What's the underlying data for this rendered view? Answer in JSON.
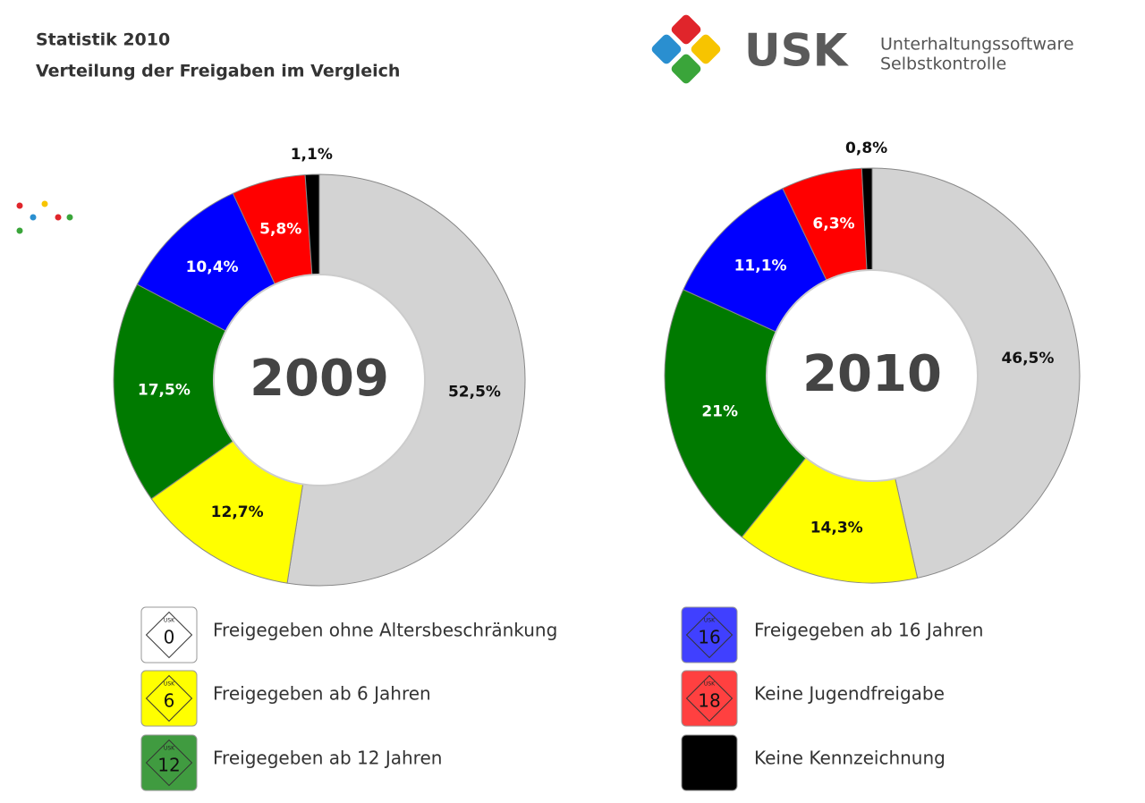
{
  "header": {
    "title": "Statistik 2010",
    "subtitle": "Verteilung der Freigaben im Vergleich"
  },
  "logo": {
    "brand": "USK",
    "line1": "Unterhaltungssoftware",
    "line2": "Selbstkontrolle"
  },
  "chart_data": [
    {
      "type": "donut",
      "center_label": "2009",
      "values": [
        52.5,
        12.7,
        17.5,
        10.4,
        5.8,
        1.1
      ],
      "value_labels": [
        "52,5%",
        "12,7%",
        "17,5%",
        "10,4%",
        "5,8%",
        "1,1%"
      ],
      "colors": [
        "#d3d3d3",
        "#ffff00",
        "#007a00",
        "#0000ff",
        "#ff0000",
        "#000000"
      ]
    },
    {
      "type": "donut",
      "center_label": "2010",
      "values": [
        46.5,
        14.3,
        21,
        11.1,
        6.3,
        0.8
      ],
      "value_labels": [
        "46,5%",
        "14,3%",
        "21%",
        "11,1%",
        "6,3%",
        "0,8%"
      ],
      "colors": [
        "#d3d3d3",
        "#ffff00",
        "#007a00",
        "#0000ff",
        "#ff0000",
        "#000000"
      ]
    }
  ],
  "legend": {
    "badge_brand": "USK",
    "items": [
      {
        "label": "Freigegeben ohne Altersbeschränkung",
        "badge": "0"
      },
      {
        "label": "Freigegeben ab 6 Jahren",
        "badge": "6"
      },
      {
        "label": "Freigegeben ab 12 Jahren",
        "badge": "12"
      },
      {
        "label": "Freigegeben ab 16 Jahren",
        "badge": "16"
      },
      {
        "label": "Keine Jugendfreigabe",
        "badge": "18"
      },
      {
        "label": "Keine Kennzeichnung"
      }
    ]
  }
}
